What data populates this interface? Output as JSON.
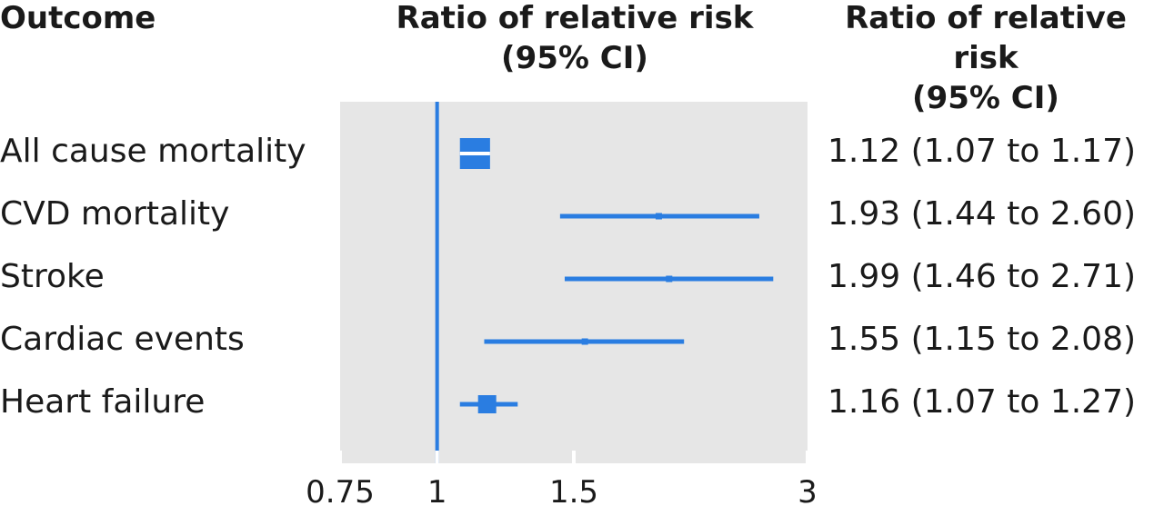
{
  "headers": {
    "outcome": "Outcome",
    "plot": "Ratio of relative risk\n(95% CI)",
    "values": "Ratio of relative risk\n(95% CI)"
  },
  "colors": {
    "accent": "#2a7de1",
    "panel": "#e6e6e6",
    "text": "#1a1a1a"
  },
  "chart_data": {
    "type": "forest",
    "xscale": "log",
    "xlim": [
      0.75,
      3
    ],
    "xticks": [
      0.75,
      1,
      1.5,
      3
    ],
    "xtick_labels": [
      "0.75",
      "1",
      "1.5",
      "3"
    ],
    "reference_line": 1,
    "rows": [
      {
        "outcome": "All cause mortality",
        "estimate": 1.12,
        "lower": 1.07,
        "upper": 1.17,
        "text": "1.12 (1.07 to 1.17)",
        "weight": "large"
      },
      {
        "outcome": "CVD mortality",
        "estimate": 1.93,
        "lower": 1.44,
        "upper": 2.6,
        "text": "1.93 (1.44 to 2.60)",
        "weight": "small"
      },
      {
        "outcome": "Stroke",
        "estimate": 1.99,
        "lower": 1.46,
        "upper": 2.71,
        "text": "1.99 (1.46 to 2.71)",
        "weight": "small"
      },
      {
        "outcome": "Cardiac events",
        "estimate": 1.55,
        "lower": 1.15,
        "upper": 2.08,
        "text": "1.55 (1.15 to 2.08)",
        "weight": "small"
      },
      {
        "outcome": "Heart failure",
        "estimate": 1.16,
        "lower": 1.07,
        "upper": 1.27,
        "text": "1.16 (1.07 to 1.27)",
        "weight": "medium"
      }
    ]
  }
}
